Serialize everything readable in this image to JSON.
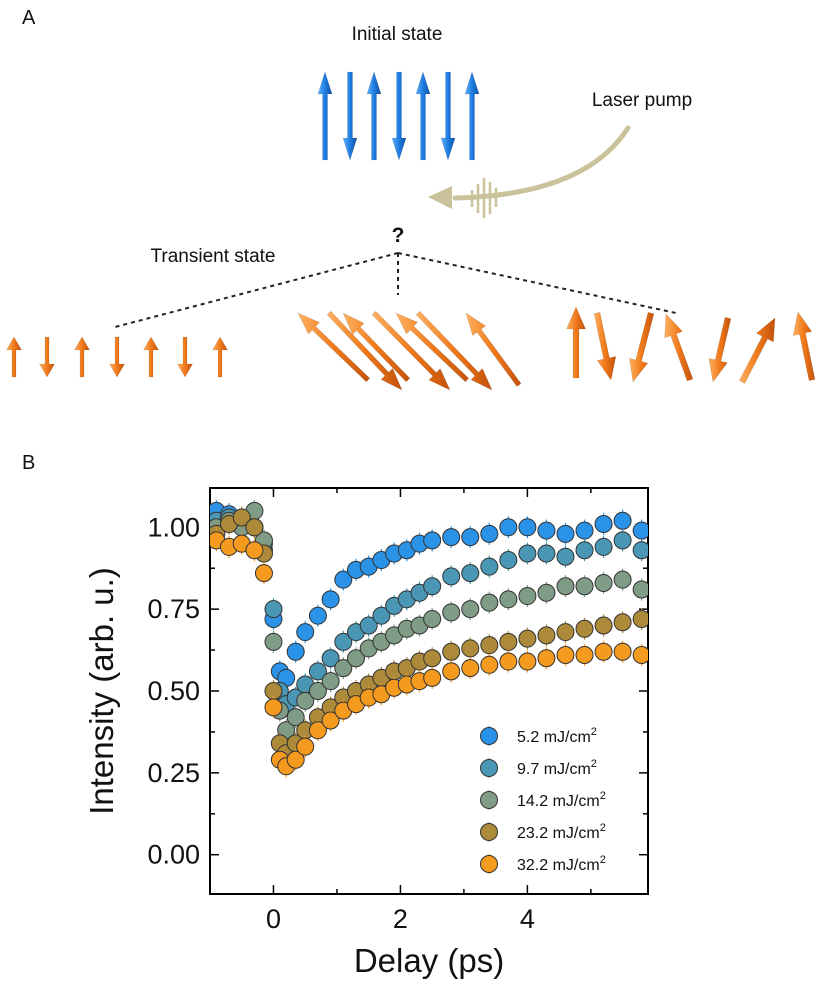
{
  "panel_a": {
    "letter": "A",
    "initial_state_label": "Initial state",
    "laser_pump_label": "Laser pump",
    "transient_state_label": "Transient state",
    "question_mark": "?",
    "colors": {
      "initial_arrow": "#1f7de0",
      "transient_arrow": "#f07a1a",
      "transient_arrow_dark": "#c5510a",
      "laser": "#c9c29a"
    }
  },
  "panel_b": {
    "letter": "B"
  },
  "chart_data": {
    "type": "scatter",
    "xlabel": "Delay (ps)",
    "ylabel": "Intensity (arb. u.)",
    "xlim": [
      -1.0,
      5.9
    ],
    "ylim": [
      -0.12,
      1.12
    ],
    "xticks": [
      0,
      2,
      4
    ],
    "xtick_labels": [
      "0",
      "2",
      "4"
    ],
    "yticks": [
      0.0,
      0.25,
      0.5,
      0.75,
      1.0
    ],
    "ytick_labels": [
      "0.00",
      "0.25",
      "0.50",
      "0.75",
      "1.00"
    ],
    "legend_position": "lower-right",
    "series": [
      {
        "name": "5.2 mJ/cm",
        "sup": "2",
        "color": "#2a93e8",
        "x": [
          -0.9,
          -0.7,
          -0.5,
          -0.3,
          -0.15,
          0,
          0.1,
          0.2,
          0.35,
          0.5,
          0.7,
          0.9,
          1.1,
          1.3,
          1.5,
          1.7,
          1.9,
          2.1,
          2.3,
          2.5,
          2.8,
          3.1,
          3.4,
          3.7,
          4.0,
          4.3,
          4.6,
          4.9,
          5.2,
          5.5,
          5.8
        ],
        "y": [
          1.05,
          1.04,
          1.02,
          1.0,
          0.93,
          0.72,
          0.56,
          0.54,
          0.62,
          0.68,
          0.73,
          0.78,
          0.84,
          0.87,
          0.88,
          0.9,
          0.92,
          0.93,
          0.95,
          0.96,
          0.97,
          0.97,
          0.98,
          1.0,
          1.0,
          0.99,
          0.98,
          0.99,
          1.01,
          1.02,
          0.99
        ]
      },
      {
        "name": "9.7 mJ/cm",
        "sup": "2",
        "color": "#4a97b5",
        "x": [
          -0.9,
          -0.7,
          -0.5,
          -0.3,
          -0.15,
          0,
          0.1,
          0.2,
          0.35,
          0.5,
          0.7,
          0.9,
          1.1,
          1.3,
          1.5,
          1.7,
          1.9,
          2.1,
          2.3,
          2.5,
          2.8,
          3.1,
          3.4,
          3.7,
          4.0,
          4.3,
          4.6,
          4.9,
          5.2,
          5.5,
          5.8
        ],
        "y": [
          1.02,
          1.03,
          1.01,
          1.0,
          0.95,
          0.75,
          0.5,
          0.46,
          0.48,
          0.52,
          0.56,
          0.6,
          0.65,
          0.68,
          0.7,
          0.73,
          0.76,
          0.78,
          0.8,
          0.82,
          0.85,
          0.86,
          0.88,
          0.9,
          0.92,
          0.92,
          0.91,
          0.93,
          0.94,
          0.96,
          0.93
        ]
      },
      {
        "name": "14.2 mJ/cm",
        "sup": "2",
        "color": "#7f9c86",
        "x": [
          -0.9,
          -0.7,
          -0.5,
          -0.3,
          -0.15,
          0,
          0.1,
          0.2,
          0.35,
          0.5,
          0.7,
          0.9,
          1.1,
          1.3,
          1.5,
          1.7,
          1.9,
          2.1,
          2.3,
          2.5,
          2.8,
          3.1,
          3.4,
          3.7,
          4.0,
          4.3,
          4.6,
          4.9,
          5.2,
          5.5,
          5.8
        ],
        "y": [
          1.0,
          1.02,
          1.0,
          1.05,
          0.96,
          0.65,
          0.44,
          0.38,
          0.42,
          0.47,
          0.5,
          0.53,
          0.57,
          0.6,
          0.63,
          0.65,
          0.67,
          0.69,
          0.7,
          0.72,
          0.74,
          0.75,
          0.77,
          0.78,
          0.79,
          0.8,
          0.82,
          0.82,
          0.83,
          0.84,
          0.81
        ]
      },
      {
        "name": "23.2 mJ/cm",
        "sup": "2",
        "color": "#ad8a3a",
        "x": [
          -0.9,
          -0.7,
          -0.5,
          -0.3,
          -0.15,
          0,
          0.1,
          0.2,
          0.35,
          0.5,
          0.7,
          0.9,
          1.1,
          1.3,
          1.5,
          1.7,
          1.9,
          2.1,
          2.3,
          2.5,
          2.8,
          3.1,
          3.4,
          3.7,
          4.0,
          4.3,
          4.6,
          4.9,
          5.2,
          5.5,
          5.8
        ],
        "y": [
          0.98,
          1.01,
          1.03,
          1.0,
          0.92,
          0.5,
          0.34,
          0.31,
          0.34,
          0.38,
          0.42,
          0.45,
          0.48,
          0.5,
          0.52,
          0.54,
          0.56,
          0.57,
          0.59,
          0.6,
          0.62,
          0.63,
          0.64,
          0.65,
          0.66,
          0.67,
          0.68,
          0.69,
          0.7,
          0.71,
          0.72
        ]
      },
      {
        "name": "32.2 mJ/cm",
        "sup": "2",
        "color": "#f49a1e",
        "x": [
          -0.9,
          -0.7,
          -0.5,
          -0.3,
          -0.15,
          0,
          0.1,
          0.2,
          0.35,
          0.5,
          0.7,
          0.9,
          1.1,
          1.3,
          1.5,
          1.7,
          1.9,
          2.1,
          2.3,
          2.5,
          2.8,
          3.1,
          3.4,
          3.7,
          4.0,
          4.3,
          4.6,
          4.9,
          5.2,
          5.5,
          5.8
        ],
        "y": [
          0.96,
          0.94,
          0.95,
          0.93,
          0.86,
          0.45,
          0.29,
          0.27,
          0.29,
          0.33,
          0.38,
          0.41,
          0.44,
          0.46,
          0.48,
          0.49,
          0.51,
          0.52,
          0.53,
          0.54,
          0.56,
          0.57,
          0.58,
          0.59,
          0.59,
          0.6,
          0.61,
          0.61,
          0.62,
          0.62,
          0.61
        ]
      }
    ]
  }
}
